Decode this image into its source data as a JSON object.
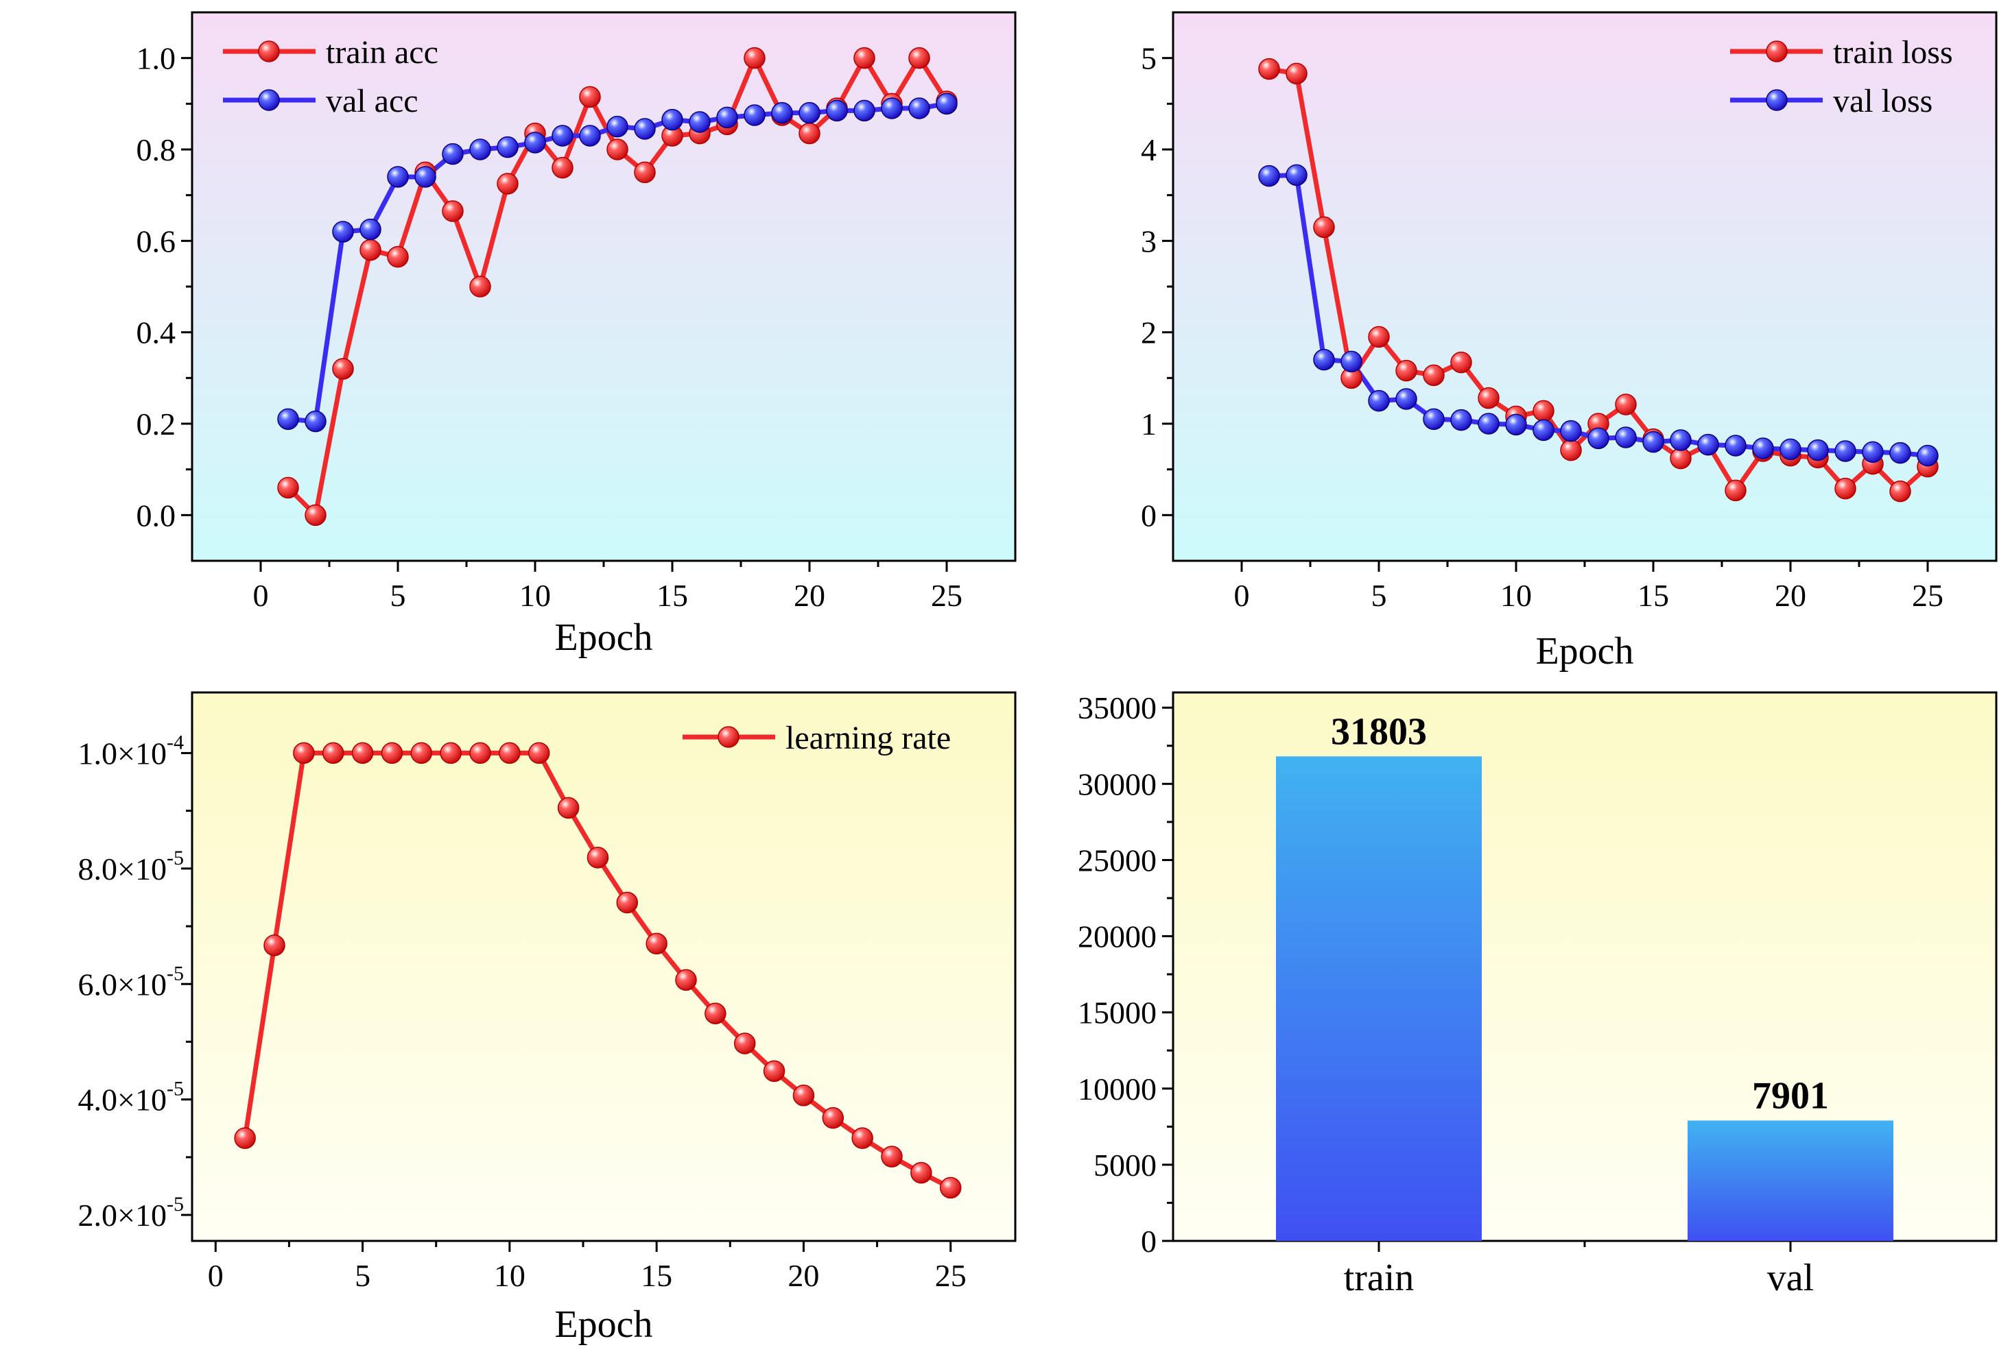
{
  "colors": {
    "red": "#f02a2a",
    "blue": "#3a2cf0",
    "acc_bg_top": "#f6dcf6",
    "acc_bg_bottom": "#cdfbfb",
    "yellow_bg_top": "#fcfac6",
    "yellow_bg_bottom": "#fffff4",
    "bar_top": "#41b2f1",
    "bar_bottom": "#3f50f2"
  },
  "chart_data": [
    {
      "id": "accuracy",
      "type": "line",
      "title": "",
      "xlabel": "Epoch",
      "ylabel": "",
      "xlim": [
        -2.5,
        27.5
      ],
      "ylim": [
        -0.1,
        1.1
      ],
      "xticks": [
        0,
        5,
        10,
        15,
        20,
        25
      ],
      "xtick_labels": [
        "0",
        "5",
        "10",
        "15",
        "20",
        "25"
      ],
      "yticks": [
        0.0,
        0.2,
        0.4,
        0.6,
        0.8,
        1.0
      ],
      "ytick_labels": [
        "0.0",
        "0.2",
        "0.4",
        "0.6",
        "0.8",
        "1.0"
      ],
      "legend_position": "top-left",
      "series": [
        {
          "name": "train acc",
          "color": "red",
          "x": [
            1,
            2,
            3,
            4,
            5,
            6,
            7,
            8,
            9,
            10,
            11,
            12,
            13,
            14,
            15,
            16,
            17,
            18,
            19,
            20,
            21,
            22,
            23,
            24,
            25
          ],
          "y": [
            0.06,
            0.0,
            0.32,
            0.58,
            0.565,
            0.75,
            0.665,
            0.5,
            0.725,
            0.835,
            0.76,
            0.915,
            0.8,
            0.75,
            0.83,
            0.835,
            0.855,
            1.0,
            0.875,
            0.835,
            0.89,
            1.0,
            0.9,
            1.0,
            0.905
          ]
        },
        {
          "name": "val acc",
          "color": "blue",
          "x": [
            1,
            2,
            3,
            4,
            5,
            6,
            7,
            8,
            9,
            10,
            11,
            12,
            13,
            14,
            15,
            16,
            17,
            18,
            19,
            20,
            21,
            22,
            23,
            24,
            25
          ],
          "y": [
            0.21,
            0.205,
            0.62,
            0.625,
            0.74,
            0.74,
            0.79,
            0.8,
            0.805,
            0.815,
            0.83,
            0.83,
            0.85,
            0.845,
            0.865,
            0.86,
            0.87,
            0.875,
            0.88,
            0.88,
            0.885,
            0.885,
            0.89,
            0.89,
            0.9
          ]
        }
      ]
    },
    {
      "id": "loss",
      "type": "line",
      "title": "",
      "xlabel": "Epoch",
      "ylabel": "",
      "xlim": [
        -2.5,
        27.5
      ],
      "ylim": [
        -0.5,
        5.5
      ],
      "xticks": [
        0,
        5,
        10,
        15,
        20,
        25
      ],
      "xtick_labels": [
        "0",
        "5",
        "10",
        "15",
        "20",
        "25"
      ],
      "yticks": [
        0,
        1,
        2,
        3,
        4,
        5
      ],
      "ytick_labels": [
        "0",
        "1",
        "2",
        "3",
        "4",
        "5"
      ],
      "legend_position": "top-right",
      "series": [
        {
          "name": "train loss",
          "color": "red",
          "x": [
            1,
            2,
            3,
            4,
            5,
            6,
            7,
            8,
            9,
            10,
            11,
            12,
            13,
            14,
            15,
            16,
            17,
            18,
            19,
            20,
            21,
            22,
            23,
            24,
            25
          ],
          "y": [
            4.88,
            4.83,
            3.15,
            1.5,
            1.95,
            1.58,
            1.53,
            1.67,
            1.28,
            1.08,
            1.14,
            0.71,
            1.0,
            1.21,
            0.83,
            0.62,
            0.77,
            0.27,
            0.7,
            0.65,
            0.63,
            0.29,
            0.56,
            0.26,
            0.53
          ]
        },
        {
          "name": "val loss",
          "color": "blue",
          "x": [
            1,
            2,
            3,
            4,
            5,
            6,
            7,
            8,
            9,
            10,
            11,
            12,
            13,
            14,
            15,
            16,
            17,
            18,
            19,
            20,
            21,
            22,
            23,
            24,
            25
          ],
          "y": [
            3.71,
            3.72,
            1.7,
            1.68,
            1.25,
            1.27,
            1.05,
            1.04,
            1.0,
            0.99,
            0.93,
            0.92,
            0.84,
            0.85,
            0.8,
            0.82,
            0.77,
            0.76,
            0.73,
            0.72,
            0.71,
            0.7,
            0.69,
            0.68,
            0.65
          ]
        }
      ]
    },
    {
      "id": "learning_rate",
      "type": "line",
      "title": "",
      "xlabel": "Epoch",
      "ylabel": "",
      "xlim": [
        -0.8,
        27.2
      ],
      "ylim": [
        1.55e-05,
        0.0001105
      ],
      "xticks": [
        0,
        5,
        10,
        15,
        20,
        25
      ],
      "xtick_labels": [
        "0",
        "5",
        "10",
        "15",
        "20",
        "25"
      ],
      "yticks": [
        2e-05,
        4e-05,
        6e-05,
        8e-05,
        0.0001
      ],
      "ytick_labels": [
        {
          "mantissa": "2.0×10",
          "exponent": "-5"
        },
        {
          "mantissa": "4.0×10",
          "exponent": "-5"
        },
        {
          "mantissa": "6.0×10",
          "exponent": "-5"
        },
        {
          "mantissa": "8.0×10",
          "exponent": "-5"
        },
        {
          "mantissa": "1.0×10",
          "exponent": "-4"
        }
      ],
      "legend_position": "top-right",
      "series": [
        {
          "name": "learning rate",
          "color": "red",
          "x": [
            1,
            2,
            3,
            4,
            5,
            6,
            7,
            8,
            9,
            10,
            11,
            12,
            13,
            14,
            15,
            16,
            17,
            18,
            19,
            20,
            21,
            22,
            23,
            24,
            25
          ],
          "y": [
            3.33e-05,
            6.67e-05,
            0.0001,
            0.0001,
            0.0001,
            0.0001,
            0.0001,
            0.0001,
            0.0001,
            0.0001,
            0.0001,
            9.05e-05,
            8.19e-05,
            7.41e-05,
            6.7e-05,
            6.07e-05,
            5.49e-05,
            4.97e-05,
            4.49e-05,
            4.07e-05,
            3.68e-05,
            3.33e-05,
            3.01e-05,
            2.73e-05,
            2.47e-05
          ]
        }
      ]
    },
    {
      "id": "dataset_size",
      "type": "bar",
      "title": "",
      "xlabel": "",
      "ylabel": "",
      "categories": [
        "train",
        "val"
      ],
      "values": [
        31803,
        7901
      ],
      "value_labels": [
        "31803",
        "7901"
      ],
      "ylim": [
        0,
        36000
      ],
      "yticks": [
        0,
        5000,
        10000,
        15000,
        20000,
        25000,
        30000,
        35000
      ],
      "ytick_labels": [
        "0",
        "5000",
        "10000",
        "15000",
        "20000",
        "25000",
        "30000",
        "35000"
      ]
    }
  ]
}
